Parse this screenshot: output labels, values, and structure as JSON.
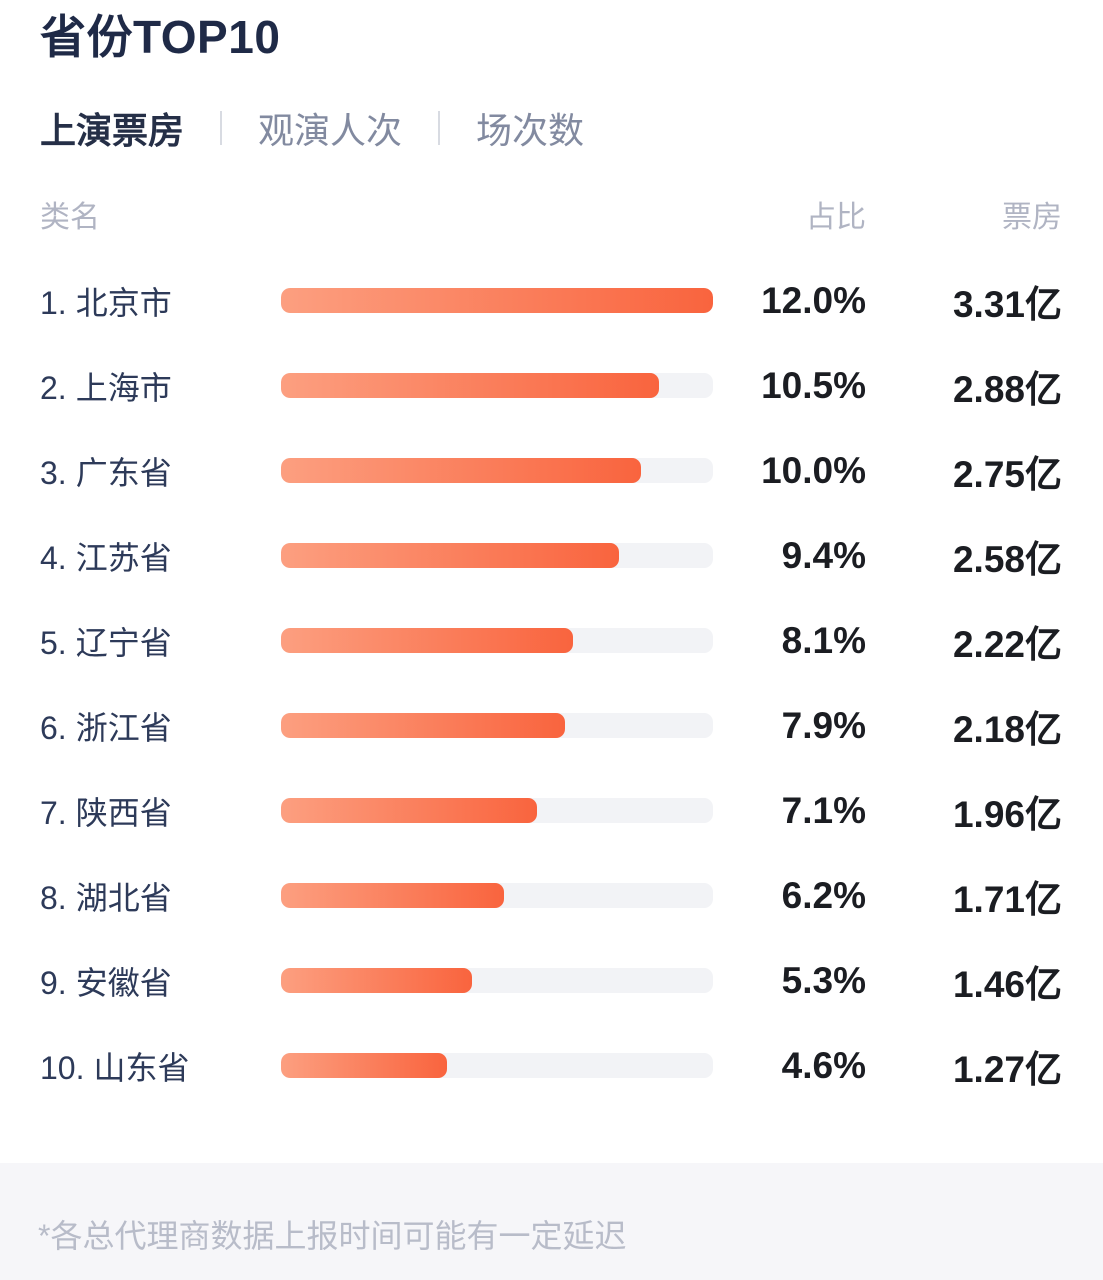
{
  "title": "省份TOP10",
  "tabs": [
    {
      "label": "上演票房",
      "active": true
    },
    {
      "label": "观演人次",
      "active": false
    },
    {
      "label": "场次数",
      "active": false
    }
  ],
  "table_header": {
    "name": "类名",
    "share": "占比",
    "boxoffice": "票房"
  },
  "rows": [
    {
      "rank": "1.",
      "name": "北京市",
      "share": "12.0%",
      "boxoffice": "3.31亿"
    },
    {
      "rank": "2.",
      "name": "上海市",
      "share": "10.5%",
      "boxoffice": "2.88亿"
    },
    {
      "rank": "3.",
      "name": "广东省",
      "share": "10.0%",
      "boxoffice": "2.75亿"
    },
    {
      "rank": "4.",
      "name": "江苏省",
      "share": "9.4%",
      "boxoffice": "2.58亿"
    },
    {
      "rank": "5.",
      "name": "辽宁省",
      "share": "8.1%",
      "boxoffice": "2.22亿"
    },
    {
      "rank": "6.",
      "name": "浙江省",
      "share": "7.9%",
      "boxoffice": "2.18亿"
    },
    {
      "rank": "7.",
      "name": "陕西省",
      "share": "7.1%",
      "boxoffice": "1.96亿"
    },
    {
      "rank": "8.",
      "name": "湖北省",
      "share": "6.2%",
      "boxoffice": "1.71亿"
    },
    {
      "rank": "9.",
      "name": "安徽省",
      "share": "5.3%",
      "boxoffice": "1.46亿"
    },
    {
      "rank": "10.",
      "name": "山东省",
      "share": "4.6%",
      "boxoffice": "1.27亿"
    }
  ],
  "footer_note": "*各总代理商数据上报时间可能有一定延迟",
  "colors": {
    "bar_gradient_start": "#FC9F80",
    "bar_gradient_end": "#F9643E",
    "bar_track": "#F2F3F6",
    "title_text": "#1F2A47",
    "label_text": "#2D3A59",
    "value_text": "#1B1D22",
    "muted_text": "#B0B4C3",
    "inactive_tab_text": "#828AA0",
    "footer_bg": "#F6F6F9",
    "footer_text": "#B8BCC9"
  },
  "chart_data": {
    "type": "bar",
    "orientation": "horizontal",
    "title": "省份TOP10 上演票房",
    "categories": [
      "北京市",
      "上海市",
      "广东省",
      "江苏省",
      "辽宁省",
      "浙江省",
      "陕西省",
      "湖北省",
      "安徽省",
      "山东省"
    ],
    "series": [
      {
        "name": "占比",
        "unit": "%",
        "values": [
          12.0,
          10.5,
          10.0,
          9.4,
          8.1,
          7.9,
          7.1,
          6.2,
          5.3,
          4.6
        ]
      },
      {
        "name": "票房",
        "unit": "亿",
        "values": [
          3.31,
          2.88,
          2.75,
          2.58,
          2.22,
          2.18,
          1.96,
          1.71,
          1.46,
          1.27
        ]
      }
    ],
    "max_value": 12.0,
    "legend": "none",
    "grid": "off"
  }
}
